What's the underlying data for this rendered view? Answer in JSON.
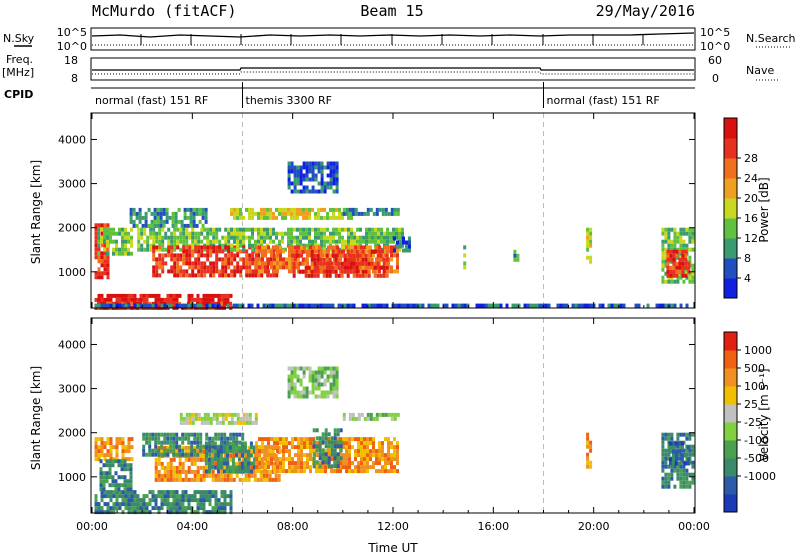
{
  "header": {
    "station": "McMurdo (fitACF)",
    "beam": "Beam 15",
    "date": "29/May/2016"
  },
  "top_panels": {
    "nsky_label": "N.Sky",
    "nsky_ticks_left": [
      "10^5",
      "10^0"
    ],
    "nsky_ticks_right": [
      "10^5",
      "10^0"
    ],
    "nsearch_label": "N.Search",
    "freq_label": "Freq.",
    "freq_unit": "[MHz]",
    "freq_ticks": [
      "18",
      "8"
    ],
    "nave_ticks": [
      "60",
      "0"
    ],
    "nave_label": "Nave",
    "cpid_label": "CPID",
    "cpid_segments": [
      {
        "label": "normal (fast) 151 RF",
        "start": 0,
        "end": 6
      },
      {
        "label": "themis 3300 RF",
        "start": 6,
        "end": 18
      },
      {
        "label": "normal (fast) 151 RF",
        "start": 18,
        "end": 24
      }
    ]
  },
  "chart_data": [
    {
      "type": "heatmap",
      "name": "power",
      "ylabel": "Slant Range [km]",
      "xlabel": "Time UT",
      "ylim": [
        180,
        4600
      ],
      "xlim": [
        0,
        24
      ],
      "x_ticks": [
        "00:00",
        "04:00",
        "08:00",
        "12:00",
        "16:00",
        "20:00",
        "00:00"
      ],
      "y_ticks": [
        1000,
        2000,
        3000,
        4000
      ],
      "colorbar": {
        "label": "Power [dB]",
        "ticks": [
          "4",
          "8",
          "12",
          "16",
          "20",
          "24",
          "28"
        ],
        "colors": [
          "#1020e0",
          "#2050c0",
          "#3a9a70",
          "#60c040",
          "#c8d820",
          "#f0a020",
          "#f07020",
          "#e83020",
          "#d81010"
        ]
      },
      "regions": [
        {
          "t0": 0.1,
          "t1": 5.5,
          "r0": 200,
          "r1": 500,
          "level": 8
        },
        {
          "t0": 0.2,
          "t1": 5.5,
          "r0": 200,
          "r1": 320,
          "level": 7
        },
        {
          "t0": 0.1,
          "t1": 0.6,
          "r0": 900,
          "r1": 2100,
          "level": 7
        },
        {
          "t0": 0.2,
          "t1": 1.6,
          "r0": 1400,
          "r1": 2000,
          "level": 3
        },
        {
          "t0": 1.5,
          "t1": 4.5,
          "r0": 2050,
          "r1": 2450,
          "level": 2
        },
        {
          "t0": 1.8,
          "t1": 6.0,
          "r0": 1500,
          "r1": 2000,
          "level": 3
        },
        {
          "t0": 2.4,
          "t1": 7.5,
          "r0": 900,
          "r1": 1600,
          "level": 7
        },
        {
          "t0": 5.5,
          "t1": 12.4,
          "r0": 1500,
          "r1": 2000,
          "level": 3
        },
        {
          "t0": 6.5,
          "t1": 12.2,
          "r0": 1000,
          "r1": 1600,
          "level": 6
        },
        {
          "t0": 8.0,
          "t1": 11.8,
          "r0": 950,
          "r1": 1500,
          "level": 7
        },
        {
          "t0": 7.8,
          "t1": 9.8,
          "r0": 2800,
          "r1": 3500,
          "level": 1
        },
        {
          "t0": 5.5,
          "t1": 10.5,
          "r0": 2250,
          "r1": 2450,
          "level": 4
        },
        {
          "t0": 10.0,
          "t1": 12.2,
          "r0": 2300,
          "r1": 2450,
          "level": 2
        },
        {
          "t0": 12.0,
          "t1": 12.6,
          "r0": 1500,
          "r1": 1800,
          "level": 1
        },
        {
          "t0": 0.1,
          "t1": 23.8,
          "r0": 200,
          "r1": 280,
          "level": 1
        },
        {
          "t0": 14.8,
          "t1": 14.9,
          "r0": 1100,
          "r1": 1600,
          "level": 3
        },
        {
          "t0": 16.8,
          "t1": 17.0,
          "r0": 1300,
          "r1": 1500,
          "level": 2
        },
        {
          "t0": 19.7,
          "t1": 19.9,
          "r0": 1200,
          "r1": 2000,
          "level": 4
        },
        {
          "t0": 22.7,
          "t1": 24.0,
          "r0": 800,
          "r1": 2000,
          "level": 3
        },
        {
          "t0": 22.9,
          "t1": 23.8,
          "r0": 900,
          "r1": 1500,
          "level": 7
        }
      ]
    },
    {
      "type": "heatmap",
      "name": "velocity",
      "ylabel": "Slant Range [km]",
      "xlabel": "Time UT",
      "ylim": [
        180,
        4600
      ],
      "xlim": [
        0,
        24
      ],
      "x_ticks": [
        "00:00",
        "04:00",
        "08:00",
        "12:00",
        "16:00",
        "20:00",
        "00:00"
      ],
      "y_ticks": [
        1000,
        2000,
        3000,
        4000
      ],
      "colorbar": {
        "label": "Velocity [m s⁻¹]",
        "ticks": [
          "1000",
          "500",
          "100",
          "25",
          "-25",
          "-100",
          "-500",
          "-1000"
        ],
        "colors": [
          "#1c3ab8",
          "#2a5aa8",
          "#3a8a6a",
          "#4aa050",
          "#80d040",
          "#c0c0c0",
          "#f0c000",
          "#f09020",
          "#f06010",
          "#e02010"
        ]
      },
      "regions": [
        {
          "t0": 0.1,
          "t1": 5.5,
          "r0": 200,
          "r1": 700,
          "level": 2
        },
        {
          "t0": 0.1,
          "t1": 1.6,
          "r0": 1400,
          "r1": 1900,
          "level": 7
        },
        {
          "t0": 0.3,
          "t1": 1.5,
          "r0": 700,
          "r1": 1400,
          "level": 2
        },
        {
          "t0": 2.5,
          "t1": 7.5,
          "r0": 900,
          "r1": 1700,
          "level": 7
        },
        {
          "t0": 2.0,
          "t1": 6.0,
          "r0": 1500,
          "r1": 2000,
          "level": 2
        },
        {
          "t0": 4.5,
          "t1": 6.5,
          "r0": 1100,
          "r1": 1800,
          "level": 2
        },
        {
          "t0": 6.5,
          "t1": 12.2,
          "r0": 1100,
          "r1": 1900,
          "level": 7
        },
        {
          "t0": 8.8,
          "t1": 9.9,
          "r0": 1200,
          "r1": 2100,
          "level": 2
        },
        {
          "t0": 3.5,
          "t1": 6.5,
          "r0": 2250,
          "r1": 2450,
          "level": 5
        },
        {
          "t0": 10.0,
          "t1": 12.2,
          "r0": 2300,
          "r1": 2450,
          "level": 4
        },
        {
          "t0": 7.8,
          "t1": 9.8,
          "r0": 2800,
          "r1": 3500,
          "level": 4
        },
        {
          "t0": 19.7,
          "t1": 19.9,
          "r0": 1200,
          "r1": 2000,
          "level": 7
        },
        {
          "t0": 22.7,
          "t1": 24.0,
          "r0": 800,
          "r1": 2000,
          "level": 2
        },
        {
          "t0": 23.0,
          "t1": 23.8,
          "r0": 1300,
          "r1": 1800,
          "level": 1
        }
      ]
    }
  ]
}
